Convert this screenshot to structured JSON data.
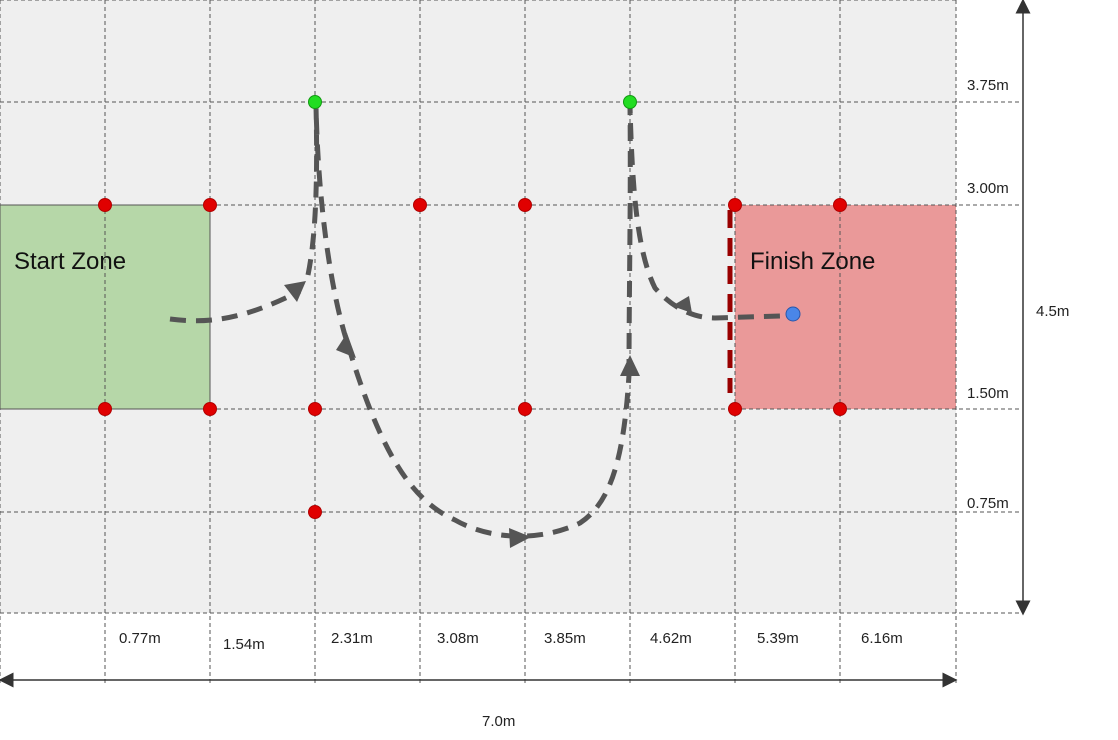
{
  "zones": {
    "start": {
      "label": "Start Zone",
      "color": "#b6d7a8"
    },
    "finish": {
      "label": "Finish Zone",
      "color": "#ea9999"
    }
  },
  "colors": {
    "field": "#efefef",
    "grid": "#555555",
    "path": "#555555",
    "cone": "#e00000",
    "turn_marker": "#22dd22",
    "end_point": "#4a86e8",
    "finish_line": "#990000"
  },
  "x_labels": [
    "0.77m",
    "1.54m",
    "2.31m",
    "3.08m",
    "3.85m",
    "4.62m",
    "5.39m",
    "6.16m"
  ],
  "y_labels": [
    "3.75m",
    "3.00m",
    "1.50m",
    "0.75m"
  ],
  "width_label": "7.0m",
  "height_label": "4.5m"
}
